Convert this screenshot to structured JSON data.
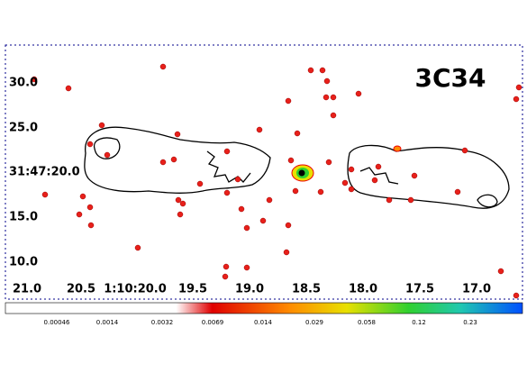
{
  "title": "3C34",
  "y_axis": {
    "labels": [
      "30.0",
      "25.0",
      "31:47:20.0",
      "15.0",
      "10.0"
    ]
  },
  "x_axis": {
    "labels": [
      "21.0",
      "20.5",
      "1:10:20.0",
      "19.5",
      "19.0",
      "18.5",
      "18.0",
      "17.5",
      "17.0"
    ]
  },
  "colorbar": {
    "labels": [
      "0.00046",
      "0.0014",
      "0.0032",
      "0.0069",
      "0.014",
      "0.029",
      "0.058",
      "0.12",
      "0.23"
    ]
  }
}
